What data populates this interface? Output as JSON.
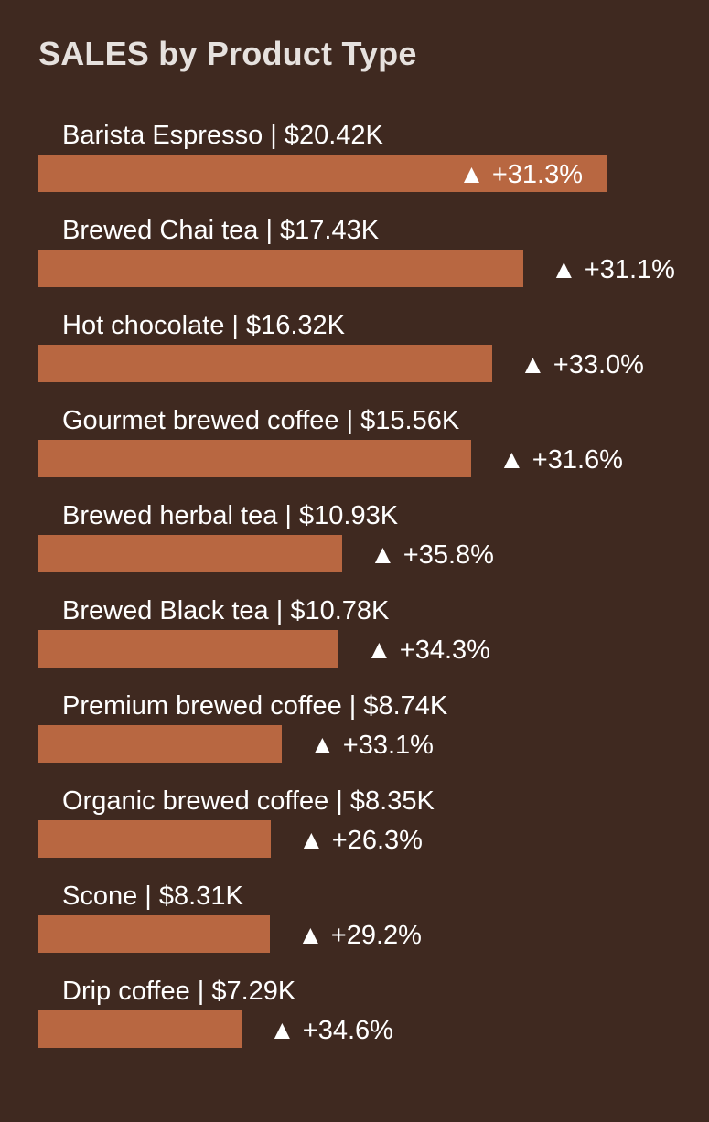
{
  "colors": {
    "background": "#3f2920",
    "bar": "#b86741",
    "text": "#ffffff",
    "title": "#e6e1de"
  },
  "chart_data": {
    "type": "bar",
    "orientation": "horizontal",
    "title": "SALES by Product Type",
    "value_unit": "$K",
    "categories": [
      "Barista Espresso",
      "Brewed Chai tea",
      "Hot chocolate",
      "Gourmet brewed coffee",
      "Brewed herbal tea",
      "Brewed Black tea",
      "Premium brewed coffee",
      "Organic brewed coffee",
      "Scone",
      "Drip coffee"
    ],
    "values": [
      20.42,
      17.43,
      16.32,
      15.56,
      10.93,
      10.78,
      8.74,
      8.35,
      8.31,
      7.29
    ],
    "value_labels": [
      "$20.42K",
      "$17.43K",
      "$16.32K",
      "$15.56K",
      "$10.93K",
      "$10.78K",
      "$8.74K",
      "$8.35K",
      "$8.31K",
      "$7.29K"
    ],
    "growth": [
      31.3,
      31.1,
      33.0,
      31.6,
      35.8,
      34.3,
      33.1,
      26.3,
      29.2,
      34.6
    ],
    "growth_labels": [
      "▲ +31.3%",
      "▲ +31.1%",
      "▲ +33.0%",
      "▲ +31.6%",
      "▲ +35.8%",
      "▲ +34.3%",
      "▲ +33.1%",
      "▲ +26.3%",
      "▲ +29.2%",
      "▲ +34.6%"
    ],
    "xlim": [
      0,
      20.42
    ],
    "grid": false,
    "legend": "none"
  }
}
